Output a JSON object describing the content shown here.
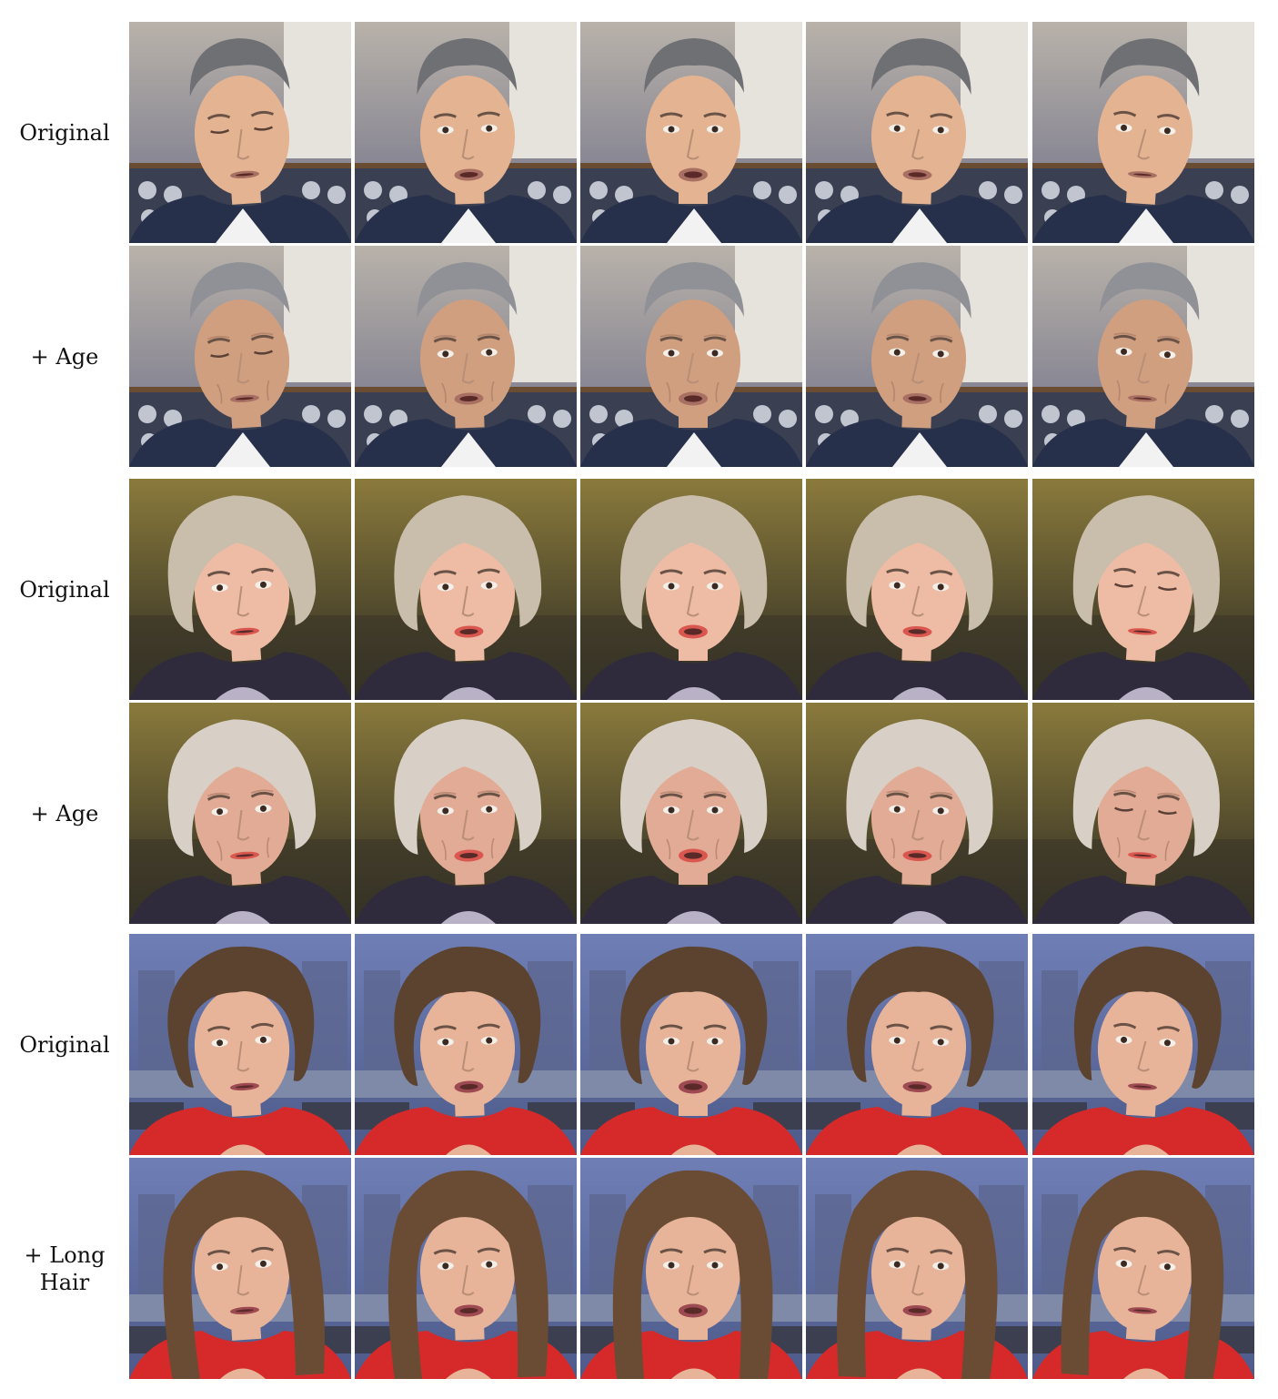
{
  "figure": {
    "groups": [
      {
        "subject": "man",
        "rows": [
          {
            "label_lines": [
              "Original"
            ]
          },
          {
            "label_lines": [
              "+ Age"
            ]
          }
        ]
      },
      {
        "subject": "woman-blonde",
        "rows": [
          {
            "label_lines": [
              "Original"
            ]
          },
          {
            "label_lines": [
              "+ Age"
            ]
          }
        ]
      },
      {
        "subject": "woman-brunette",
        "rows": [
          {
            "label_lines": [
              "Original"
            ]
          },
          {
            "label_lines": [
              "+ Long",
              "Hair"
            ]
          }
        ]
      }
    ],
    "frames_per_row": 5
  }
}
